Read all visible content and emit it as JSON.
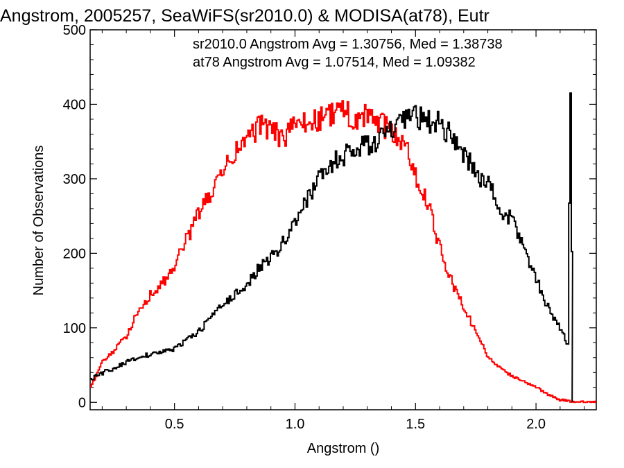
{
  "chart_data": {
    "type": "line",
    "title": "Angstrom, 2005257, SeaWiFS(sr2010.0) & MODISA(at78), Eutr",
    "xlabel": "Angstrom ()",
    "ylabel": "Number of Observations",
    "xlim": [
      0.15,
      2.25
    ],
    "ylim": [
      -10,
      500
    ],
    "x_ticks": [
      {
        "value": 0.5,
        "label": "0.5"
      },
      {
        "value": 1.0,
        "label": "1.0"
      },
      {
        "value": 1.5,
        "label": "1.5"
      },
      {
        "value": 2.0,
        "label": "2.0"
      }
    ],
    "y_ticks": [
      {
        "value": 0,
        "label": "0"
      },
      {
        "value": 100,
        "label": "100"
      },
      {
        "value": 200,
        "label": "200"
      },
      {
        "value": 300,
        "label": "300"
      },
      {
        "value": 400,
        "label": "400"
      },
      {
        "value": 500,
        "label": "500"
      }
    ],
    "legend_placement": "top-right",
    "annotations": [
      {
        "text": "sr2010.0 Angstrom Avg = 1.30756, Med = 1.38738",
        "color": "#000000"
      },
      {
        "text": "at78 Angstrom Avg = 1.07514, Med = 1.09382",
        "color": "#ff0000"
      }
    ],
    "series": [
      {
        "color": "#000000",
        "style": "step",
        "x": [
          0.15,
          0.2,
          0.25,
          0.3,
          0.35,
          0.4,
          0.45,
          0.5,
          0.55,
          0.6,
          0.65,
          0.7,
          0.75,
          0.8,
          0.85,
          0.9,
          0.95,
          1.0,
          1.05,
          1.1,
          1.15,
          1.2,
          1.25,
          1.3,
          1.35,
          1.4,
          1.45,
          1.5,
          1.55,
          1.6,
          1.65,
          1.7,
          1.75,
          1.8,
          1.85,
          1.9,
          1.95,
          2.0,
          2.05,
          2.1,
          2.13,
          2.14,
          2.15
        ],
        "y": [
          30,
          40,
          45,
          55,
          60,
          65,
          68,
          72,
          85,
          95,
          115,
          130,
          145,
          160,
          180,
          195,
          215,
          245,
          275,
          300,
          320,
          330,
          340,
          345,
          355,
          365,
          375,
          385,
          375,
          375,
          355,
          335,
          305,
          295,
          255,
          245,
          205,
          165,
          125,
          100,
          75,
          415,
          100
        ]
      },
      {
        "color": "#ff0000",
        "style": "step",
        "x": [
          0.15,
          0.2,
          0.25,
          0.3,
          0.35,
          0.4,
          0.45,
          0.5,
          0.55,
          0.6,
          0.65,
          0.7,
          0.75,
          0.8,
          0.85,
          0.9,
          0.95,
          1.0,
          1.05,
          1.1,
          1.15,
          1.2,
          1.25,
          1.3,
          1.35,
          1.4,
          1.45,
          1.5,
          1.55,
          1.6,
          1.65,
          1.7,
          1.75,
          1.8,
          1.85,
          1.9,
          1.95,
          2.0,
          2.05,
          2.1,
          2.15,
          2.2,
          2.25
        ],
        "y": [
          20,
          55,
          70,
          90,
          125,
          145,
          160,
          185,
          220,
          255,
          280,
          310,
          335,
          355,
          370,
          365,
          355,
          370,
          375,
          380,
          385,
          395,
          375,
          385,
          375,
          360,
          350,
          305,
          265,
          205,
          160,
          125,
          95,
          60,
          45,
          35,
          28,
          20,
          10,
          3,
          1,
          0,
          0
        ]
      }
    ]
  }
}
